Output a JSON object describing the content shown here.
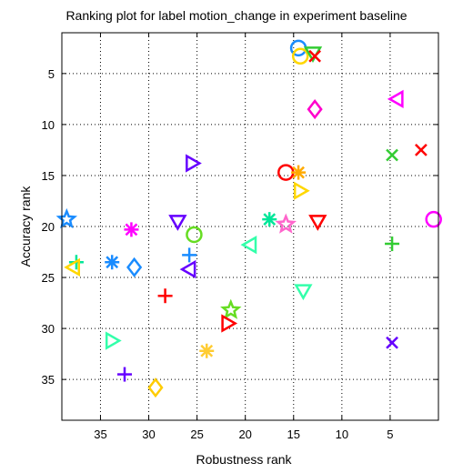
{
  "chart_data": {
    "type": "scatter",
    "title": "Ranking plot for label motion_change in experiment baseline",
    "xlabel": "Robustness rank",
    "ylabel": "Accuracy rank",
    "xlim": [
      39,
      0
    ],
    "ylim": [
      1,
      39
    ],
    "x_reversed": true,
    "y_reversed": true,
    "xticks": [
      35,
      30,
      25,
      20,
      15,
      10,
      5
    ],
    "yticks": [
      5,
      10,
      15,
      20,
      25,
      30,
      35
    ],
    "grid": true,
    "points": [
      {
        "x": 14.5,
        "y": 2.5,
        "marker": "circle",
        "color": "#1a8cff"
      },
      {
        "x": 14.3,
        "y": 3.3,
        "marker": "circle",
        "color": "#ffd700"
      },
      {
        "x": 13.0,
        "y": 3.0,
        "marker": "triangle-down",
        "color": "#33cc33"
      },
      {
        "x": 12.8,
        "y": 3.3,
        "marker": "x",
        "color": "#ff0000"
      },
      {
        "x": 12.8,
        "y": 8.5,
        "marker": "diamond",
        "color": "#ff00cc"
      },
      {
        "x": 4.3,
        "y": 7.5,
        "marker": "triangle-left",
        "color": "#ff00ff"
      },
      {
        "x": 1.8,
        "y": 12.5,
        "marker": "x",
        "color": "#ff0000"
      },
      {
        "x": 4.8,
        "y": 13.0,
        "marker": "x",
        "color": "#33cc33"
      },
      {
        "x": 25.5,
        "y": 13.8,
        "marker": "triangle-right",
        "color": "#6600ff"
      },
      {
        "x": 15.8,
        "y": 14.7,
        "marker": "circle",
        "color": "#ff0000"
      },
      {
        "x": 14.5,
        "y": 14.7,
        "marker": "asterisk",
        "color": "#ffaa00"
      },
      {
        "x": 14.3,
        "y": 16.5,
        "marker": "triangle-right",
        "color": "#ffd700"
      },
      {
        "x": 38.5,
        "y": 19.3,
        "marker": "star",
        "color": "#1a8cff"
      },
      {
        "x": 27.0,
        "y": 19.5,
        "marker": "triangle-down",
        "color": "#6600ff"
      },
      {
        "x": 17.5,
        "y": 19.3,
        "marker": "asterisk",
        "color": "#00e699"
      },
      {
        "x": 15.8,
        "y": 19.8,
        "marker": "star",
        "color": "#ff66cc"
      },
      {
        "x": 12.5,
        "y": 19.5,
        "marker": "triangle-down",
        "color": "#ff0000"
      },
      {
        "x": 0.5,
        "y": 19.3,
        "marker": "circle",
        "color": "#ff00ff"
      },
      {
        "x": 31.8,
        "y": 20.3,
        "marker": "asterisk",
        "color": "#ff00ff"
      },
      {
        "x": 25.3,
        "y": 20.8,
        "marker": "circle",
        "color": "#66dd22"
      },
      {
        "x": 19.5,
        "y": 21.8,
        "marker": "triangle-left",
        "color": "#33ffaa"
      },
      {
        "x": 4.8,
        "y": 21.7,
        "marker": "plus",
        "color": "#33cc33"
      },
      {
        "x": 25.8,
        "y": 22.8,
        "marker": "plus",
        "color": "#1a8cff"
      },
      {
        "x": 37.5,
        "y": 23.5,
        "marker": "plus",
        "color": "#00e699"
      },
      {
        "x": 37.8,
        "y": 24.0,
        "marker": "triangle-left",
        "color": "#ffd700"
      },
      {
        "x": 33.8,
        "y": 23.5,
        "marker": "asterisk",
        "color": "#1a8cff"
      },
      {
        "x": 31.5,
        "y": 24.0,
        "marker": "diamond",
        "color": "#1a8cff"
      },
      {
        "x": 25.8,
        "y": 24.2,
        "marker": "triangle-left",
        "color": "#6600ff"
      },
      {
        "x": 28.3,
        "y": 26.8,
        "marker": "plus",
        "color": "#ff0000"
      },
      {
        "x": 14.0,
        "y": 26.3,
        "marker": "triangle-down",
        "color": "#33ffaa"
      },
      {
        "x": 21.5,
        "y": 28.2,
        "marker": "star",
        "color": "#66dd22"
      },
      {
        "x": 21.8,
        "y": 29.5,
        "marker": "triangle-right",
        "color": "#ff0000"
      },
      {
        "x": 33.8,
        "y": 31.2,
        "marker": "triangle-right",
        "color": "#33ffaa"
      },
      {
        "x": 24.0,
        "y": 32.2,
        "marker": "asterisk",
        "color": "#ffcc33"
      },
      {
        "x": 4.8,
        "y": 31.4,
        "marker": "x",
        "color": "#6600ff"
      },
      {
        "x": 32.5,
        "y": 34.5,
        "marker": "plus",
        "color": "#6600ff"
      },
      {
        "x": 29.3,
        "y": 35.8,
        "marker": "diamond",
        "color": "#ffcc00"
      }
    ]
  }
}
